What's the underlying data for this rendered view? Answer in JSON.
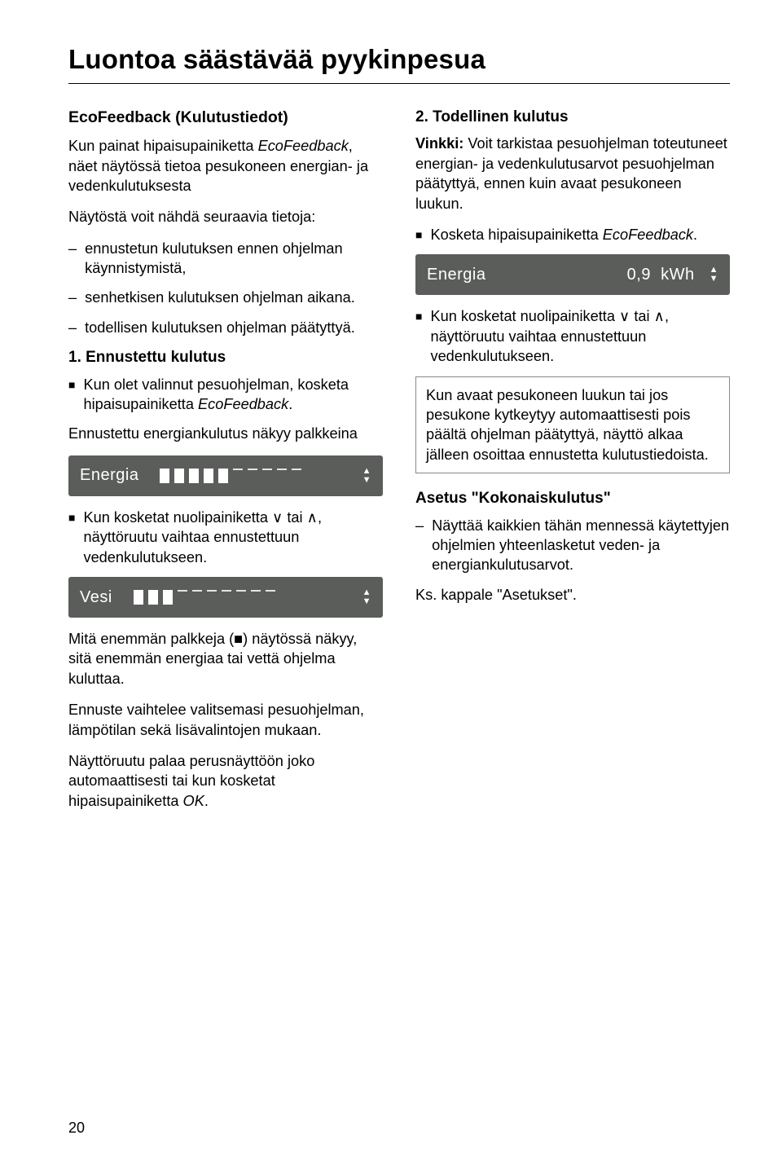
{
  "header": {
    "title": "Luontoa säästävää pyykinpesua"
  },
  "left": {
    "section_title": "EcoFeedback (Kulutustiedot)",
    "intro_1a": "Kun painat hipaisupainiketta ",
    "intro_1b": "EcoFeed­back",
    "intro_1c": ", näet näytössä tietoa pesukoneen energian- ja vedenkulutuksesta",
    "intro_2": "Näytöstä voit nähdä seuraavia tietoja:",
    "d1": "ennustetun kulutuksen ennen ohjelman käynnistymistä,",
    "d2": "senhetkisen kulutuksen ohjelman aikana.",
    "d3": "todellisen kulutuksen ohjelman päätyttyä.",
    "sub1": "1. Ennustettu kulutus",
    "sq1a": "Kun olet valinnut pesuohjelman, kosketa hipaisupainiketta ",
    "sq1b": "EcoFeedback",
    "sq1c": ".",
    "p3": "Ennustettu energiankulutus näkyy palkkeina",
    "lcd1": {
      "label": "Energia",
      "bars": 5,
      "ghosts": 5
    },
    "sq2": "Kun kosketat nuolipainiketta ∨ tai ∧, näyttöruutu vaihtaa ennustettuun vedenkulutukseen.",
    "lcd2": {
      "label": "Vesi",
      "bars": 3,
      "ghosts": 7
    },
    "p4": "Mitä enemmän palkkeja (■) näytössä näkyy, sitä enemmän energiaa tai vettä ohjelma kuluttaa.",
    "p5": "Ennuste vaihtelee valitsemasi pesuohjelman, lämpötilan sekä lisävalintojen mukaan.",
    "p6a": "Näyttöruutu palaa perusnäyttöön joko automaattisesti tai kun kosketat hipaisupainiketta ",
    "p6b": "OK",
    "p6c": "."
  },
  "right": {
    "sub2": "2. Todellinen kulutus",
    "tip_a": "Vinkki:",
    "tip_b": " Voit tarkistaa pesuohjelman toteutuneet energian- ja vedenkulutusarvot pesuohjelman päätyttyä, ennen kuin avaat pesukoneen luukun.",
    "sq3a": "Kosketa hipaisupainiketta ",
    "sq3b": "EcoFeed­back",
    "sq3c": ".",
    "lcd3": {
      "label": "Energia",
      "value": "0,9",
      "unit": "kWh"
    },
    "sq4": "Kun kosketat nuolipainiketta ∨ tai ∧, näyttöruutu vaihtaa ennustettuun vedenkulutukseen.",
    "note": "Kun avaat pesukoneen luukun tai jos pesukone kytkeytyy automaattisesti pois päältä ohjelman päätyttyä, näyttö alkaa jälleen osoittaa ennustetta kulutustiedoista.",
    "sub3": "Asetus \"Kokonaiskulutus\"",
    "d4": "Näyttää kaikkien tähän mennessä käytettyjen ohjelmien yhteenlasketut veden- ja energiankulutusarvot.",
    "p7": "Ks. kappale \"Asetukset\"."
  },
  "footer": {
    "page": "20"
  }
}
